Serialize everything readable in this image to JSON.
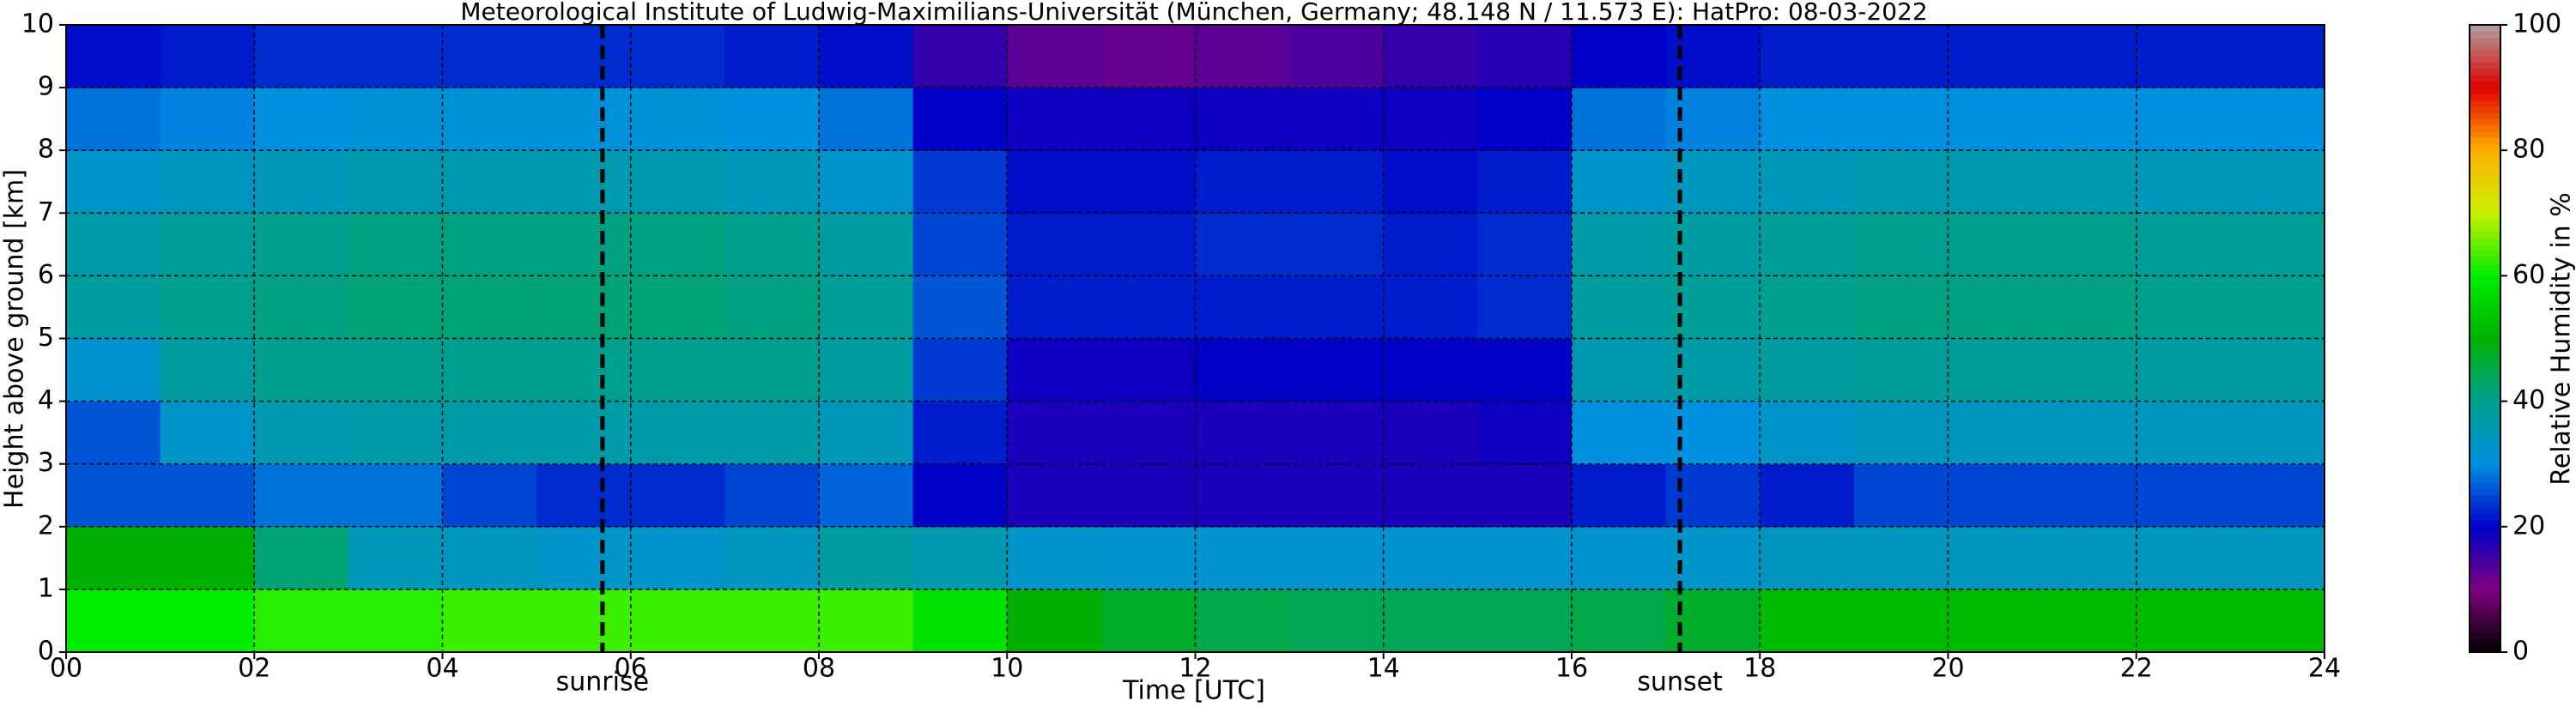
{
  "chart_data": {
    "type": "heatmap",
    "title": "Meteorological Institute of Ludwig-Maximilians-Universität (München, Germany; 48.148 N / 11.573 E):    HatPro: 08-03-2022",
    "x_label": "Time [UTC]",
    "y_label": "Height above ground [km]",
    "x": [
      0,
      1,
      2,
      3,
      4,
      5,
      6,
      7,
      8,
      9,
      10,
      11,
      12,
      13,
      14,
      15,
      16,
      17,
      18,
      19,
      20,
      21,
      22,
      23,
      24
    ],
    "y": [
      0,
      1,
      2,
      3,
      4,
      5,
      6,
      7,
      8,
      9,
      10
    ],
    "z": [
      [
        60,
        60,
        62,
        62,
        63,
        63,
        63,
        63,
        63,
        58,
        50,
        47,
        45,
        44,
        44,
        44,
        45,
        47,
        52,
        52,
        52,
        52,
        52,
        52
      ],
      [
        50,
        50,
        42,
        35,
        34,
        33,
        33,
        34,
        38,
        36,
        33,
        32,
        32,
        32,
        32,
        32,
        32,
        33,
        34,
        34,
        34,
        34,
        34,
        34
      ],
      [
        26,
        26,
        28,
        28,
        25,
        23,
        23,
        25,
        27,
        20,
        18,
        18,
        18,
        18,
        18,
        18,
        22,
        24,
        22,
        25,
        25,
        25,
        25,
        25
      ],
      [
        26,
        33,
        36,
        37,
        37,
        37,
        37,
        37,
        35,
        22,
        18,
        18,
        18,
        18,
        18,
        19,
        30,
        30,
        33,
        34,
        34,
        34,
        34,
        34
      ],
      [
        32,
        38,
        40,
        40,
        40,
        40,
        40,
        40,
        38,
        24,
        19,
        19,
        20,
        20,
        20,
        20,
        36,
        37,
        38,
        39,
        39,
        39,
        38,
        38
      ],
      [
        38,
        40,
        41,
        42,
        42,
        42,
        42,
        41,
        39,
        26,
        22,
        22,
        22,
        22,
        22,
        23,
        38,
        39,
        40,
        41,
        41,
        41,
        40,
        40
      ],
      [
        37,
        39,
        40,
        41,
        41,
        41,
        41,
        40,
        38,
        25,
        22,
        22,
        23,
        23,
        22,
        23,
        37,
        38,
        39,
        40,
        40,
        40,
        39,
        39
      ],
      [
        33,
        34,
        35,
        36,
        36,
        36,
        36,
        35,
        33,
        24,
        21,
        21,
        22,
        22,
        21,
        22,
        33,
        34,
        35,
        36,
        36,
        36,
        35,
        35
      ],
      [
        28,
        29,
        30,
        31,
        31,
        31,
        31,
        30,
        28,
        20,
        19,
        19,
        19,
        19,
        19,
        20,
        28,
        29,
        30,
        30,
        30,
        30,
        30,
        30
      ],
      [
        21,
        22,
        23,
        23,
        23,
        23,
        23,
        22,
        21,
        16,
        13,
        12,
        13,
        14,
        16,
        17,
        20,
        21,
        22,
        22,
        22,
        22,
        22,
        22
      ]
    ],
    "xlim": [
      0,
      24
    ],
    "ylim": [
      0,
      10
    ],
    "xticks": [
      {
        "value": 0,
        "label": "00"
      },
      {
        "value": 2,
        "label": "02"
      },
      {
        "value": 4,
        "label": "04"
      },
      {
        "value": 6,
        "label": "06"
      },
      {
        "value": 8,
        "label": "08"
      },
      {
        "value": 10,
        "label": "10"
      },
      {
        "value": 12,
        "label": "12"
      },
      {
        "value": 14,
        "label": "14"
      },
      {
        "value": 16,
        "label": "16"
      },
      {
        "value": 18,
        "label": "18"
      },
      {
        "value": 20,
        "label": "20"
      },
      {
        "value": 22,
        "label": "22"
      },
      {
        "value": 24,
        "label": "24"
      }
    ],
    "yticks": [
      0,
      1,
      2,
      3,
      4,
      5,
      6,
      7,
      8,
      9,
      10
    ],
    "grid": true,
    "annotations": [
      {
        "x": 5.7,
        "label": "sunrise"
      },
      {
        "x": 17.15,
        "label": "sunset"
      }
    ],
    "colormap": [
      "#000000",
      "#800080",
      "#0000c8",
      "#0090e0",
      "#00a090",
      "#00b000",
      "#00ee00",
      "#c8f000",
      "#ffb000",
      "#e00000",
      "#b0a0a0"
    ],
    "colorbar": {
      "label": "Relative Humidity in %",
      "lim": [
        0,
        100
      ],
      "ticks": [
        0,
        20,
        40,
        60,
        80,
        100
      ]
    }
  }
}
